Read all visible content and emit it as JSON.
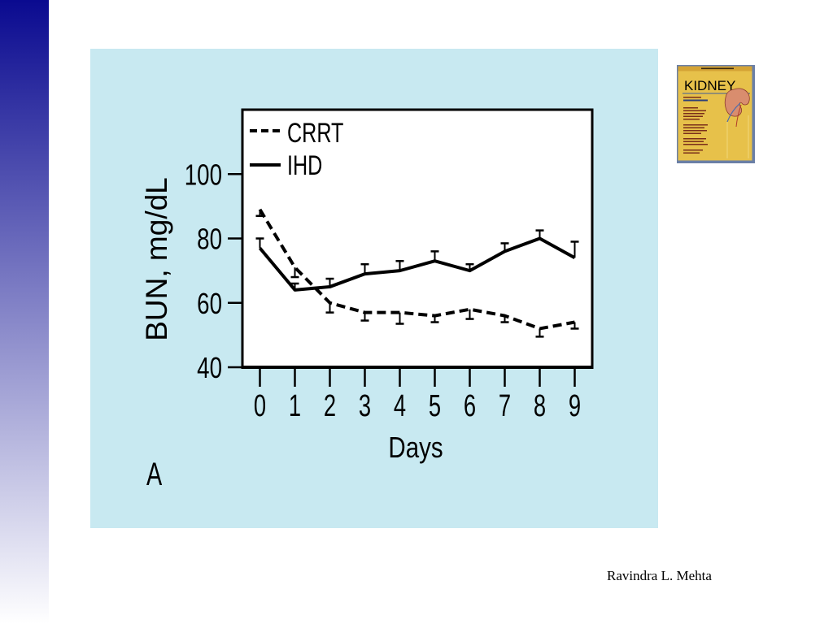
{
  "slide": {
    "footer": "Ravindra L. Mehta"
  },
  "colors": {
    "sidebar_top": "#0a0a90",
    "sidebar_bottom": "#ffffff",
    "panel": "#c8e9f1",
    "ink": "#000000",
    "book_cover": "#e7c14a",
    "book_title": "#c9472a"
  },
  "book": {
    "title": "KIDNEY"
  },
  "chart_data": {
    "type": "line",
    "x": [
      0,
      1,
      2,
      3,
      4,
      5,
      6,
      7,
      8,
      9
    ],
    "series": [
      {
        "name": "CRRT",
        "line_style": "dashed",
        "values": [
          89,
          71,
          60,
          57,
          57,
          56,
          58,
          56,
          52,
          54
        ],
        "error": [
          2,
          3,
          3,
          2.5,
          3.5,
          2,
          3,
          2,
          2.5,
          2
        ],
        "error_direction": "down"
      },
      {
        "name": "IHD",
        "line_style": "solid",
        "values": [
          77,
          64,
          65,
          69,
          70,
          73,
          70,
          76,
          80,
          74
        ],
        "error": [
          3,
          2,
          2.5,
          3,
          3,
          3,
          2,
          2.5,
          2.5,
          5
        ],
        "error_direction": "up"
      }
    ],
    "xlabel": "Days",
    "ylabel": "BUN, mg/dL",
    "yticks": [
      40,
      60,
      80,
      100
    ],
    "xlim": [
      -0.5,
      9.5
    ],
    "ylim": [
      40,
      120
    ],
    "legend": "top-left",
    "grid": false,
    "panel_label": "A"
  }
}
